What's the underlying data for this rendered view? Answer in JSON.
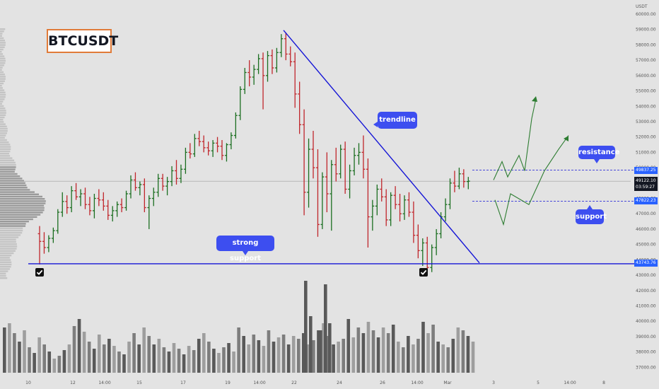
{
  "title": "BTCUSDT",
  "currency_label": "USDT",
  "colors": {
    "background": "#e3e3e3",
    "up_candle": "#1b6e20",
    "down_candle": "#c0262c",
    "trendline": "#1515d6",
    "support_line": "#1515d6",
    "callout": "#3d4ef0",
    "projection": "#2e7d32",
    "title_border": "#e07b39"
  },
  "annotations": {
    "trendline": "trendline",
    "resistance": "resistance",
    "support": "support",
    "strong_support": "strong support"
  },
  "icons": [
    "check-icon",
    "check-icon"
  ],
  "price_tags": {
    "resistance": "49837.25",
    "current_price": "49122.10",
    "countdown": "03:59:27",
    "support": "47822.23",
    "strong_support": "43743.76"
  },
  "chart_data": {
    "type": "candlestick",
    "title": "BTCUSDT",
    "y_axis": {
      "unit": "USDT",
      "range": [
        36400,
        60600
      ],
      "ticks": [
        "60000.00",
        "59000.00",
        "58000.00",
        "57000.00",
        "56000.00",
        "55000.00",
        "54000.00",
        "53000.00",
        "52000.00",
        "51000.00",
        "50000.00",
        "49000.00",
        "48000.00",
        "47000.00",
        "46000.00",
        "45000.00",
        "44000.00",
        "43000.00",
        "42000.00",
        "41000.00",
        "40000.00",
        "39000.00",
        "38000.00",
        "37000.00"
      ],
      "tick_values": [
        60000,
        59000,
        58000,
        57000,
        56000,
        55000,
        54000,
        53000,
        52000,
        51000,
        50000,
        49000,
        48000,
        47000,
        46000,
        45000,
        44000,
        43000,
        42000,
        41000,
        40000,
        39000,
        38000,
        37000
      ]
    },
    "x_axis": {
      "ticks": [
        "10",
        "12",
        "14:00",
        "15",
        "17",
        "19",
        "14:00",
        "22",
        "24",
        "26",
        "14:00",
        "Mar",
        "3",
        "5",
        "14:00",
        "8"
      ]
    },
    "levels": {
      "resistance": 49837.25,
      "current": 49122.1,
      "support": 47822.23,
      "strong_support": 43743.76
    },
    "trendline_points": [
      [
        58950,
        0
      ],
      [
        43800,
        1
      ]
    ],
    "projection_paths": [
      [
        49200,
        49900,
        49300,
        50400,
        49900,
        53300,
        54500
      ],
      [
        47900,
        46300,
        48300,
        47600,
        49800,
        51200,
        52100
      ]
    ],
    "volume_profile": "left-side horizontal histogram",
    "candles": [
      [
        45700,
        46200,
        43700,
        45200
      ],
      [
        45200,
        45800,
        44400,
        44800
      ],
      [
        44800,
        45600,
        44500,
        45400
      ],
      [
        45400,
        46100,
        45100,
        45900
      ],
      [
        45900,
        47300,
        45700,
        47100
      ],
      [
        47100,
        48400,
        46800,
        47800
      ],
      [
        47800,
        48200,
        47000,
        47400
      ],
      [
        47400,
        48800,
        47100,
        48500
      ],
      [
        48500,
        49000,
        47900,
        48100
      ],
      [
        48100,
        48600,
        47500,
        48300
      ],
      [
        48300,
        48700,
        47300,
        47600
      ],
      [
        47600,
        48100,
        46900,
        47200
      ],
      [
        47200,
        48300,
        46700,
        48000
      ],
      [
        48000,
        48600,
        47500,
        47900
      ],
      [
        47900,
        48400,
        47200,
        47500
      ],
      [
        47500,
        47900,
        46600,
        46900
      ],
      [
        46900,
        47500,
        46500,
        47200
      ],
      [
        47200,
        47800,
        46800,
        47600
      ],
      [
        47600,
        48000,
        47100,
        47400
      ],
      [
        47400,
        48500,
        47200,
        48300
      ],
      [
        48300,
        49500,
        48000,
        49200
      ],
      [
        49200,
        49700,
        48500,
        48700
      ],
      [
        48700,
        49100,
        48200,
        48900
      ],
      [
        48900,
        49300,
        47100,
        47400
      ],
      [
        47400,
        48200,
        46000,
        48000
      ],
      [
        48000,
        48700,
        47500,
        48400
      ],
      [
        48400,
        49600,
        48100,
        49300
      ],
      [
        49300,
        49600,
        48500,
        48800
      ],
      [
        48800,
        49400,
        48200,
        49100
      ],
      [
        49100,
        50100,
        48800,
        49800
      ],
      [
        49800,
        50500,
        48900,
        49300
      ],
      [
        49300,
        50200,
        49000,
        49900
      ],
      [
        49900,
        51300,
        49600,
        51000
      ],
      [
        51000,
        51600,
        50600,
        50900
      ],
      [
        50900,
        52200,
        50700,
        51900
      ],
      [
        51900,
        52400,
        51400,
        51700
      ],
      [
        51700,
        52100,
        51000,
        51300
      ],
      [
        51300,
        51700,
        50800,
        51100
      ],
      [
        51100,
        51800,
        50700,
        51600
      ],
      [
        51600,
        52000,
        51000,
        51400
      ],
      [
        51400,
        51800,
        50500,
        50800
      ],
      [
        50800,
        51600,
        50400,
        51500
      ],
      [
        51500,
        52300,
        51200,
        52100
      ],
      [
        52100,
        53600,
        51900,
        53400
      ],
      [
        53400,
        55300,
        53100,
        55100
      ],
      [
        55100,
        56500,
        54800,
        56200
      ],
      [
        56200,
        57000,
        55300,
        55900
      ],
      [
        55900,
        56700,
        55400,
        56400
      ],
      [
        56400,
        57400,
        56100,
        57100
      ],
      [
        57100,
        57500,
        53800,
        56000
      ],
      [
        56000,
        57600,
        55600,
        57300
      ],
      [
        57300,
        57700,
        56100,
        56500
      ],
      [
        56500,
        57800,
        56200,
        57500
      ],
      [
        57500,
        58700,
        57200,
        58400
      ],
      [
        58400,
        58800,
        57000,
        57400
      ],
      [
        57400,
        57900,
        56600,
        56900
      ],
      [
        56900,
        57500,
        53900,
        54800
      ],
      [
        54800,
        55600,
        52200,
        52800
      ],
      [
        52800,
        53800,
        46900,
        48400
      ],
      [
        48400,
        51900,
        47400,
        51200
      ],
      [
        51200,
        52400,
        49300,
        50000
      ],
      [
        50000,
        51200,
        45500,
        46300
      ],
      [
        46300,
        49700,
        46000,
        49400
      ],
      [
        49400,
        51000,
        47100,
        48300
      ],
      [
        48300,
        50500,
        45900,
        50200
      ],
      [
        50200,
        51300,
        49100,
        49600
      ],
      [
        49600,
        51500,
        49300,
        51200
      ],
      [
        51200,
        51700,
        48300,
        48600
      ],
      [
        48600,
        50200,
        48000,
        49800
      ],
      [
        49800,
        51300,
        49500,
        50800
      ],
      [
        50800,
        51600,
        50200,
        51000
      ],
      [
        51000,
        52100,
        49300,
        49900
      ],
      [
        49900,
        50600,
        44800,
        46800
      ],
      [
        46800,
        47900,
        45900,
        47500
      ],
      [
        47500,
        48900,
        46900,
        48600
      ],
      [
        48600,
        49300,
        47800,
        48100
      ],
      [
        48100,
        48600,
        46200,
        46600
      ],
      [
        46600,
        48400,
        46200,
        48200
      ],
      [
        48200,
        48800,
        47300,
        47600
      ],
      [
        47600,
        48300,
        46500,
        47000
      ],
      [
        47000,
        48200,
        46600,
        47900
      ],
      [
        47900,
        48400,
        46800,
        47100
      ],
      [
        47100,
        47800,
        45100,
        45600
      ],
      [
        45600,
        46300,
        44100,
        44600
      ],
      [
        44600,
        45400,
        43600,
        45100
      ],
      [
        45100,
        45500,
        43100,
        43500
      ],
      [
        43500,
        45000,
        43200,
        44800
      ],
      [
        44800,
        46000,
        44300,
        45700
      ],
      [
        45700,
        47100,
        45400,
        46800
      ],
      [
        46800,
        48000,
        46500,
        47600
      ],
      [
        47600,
        49300,
        47300,
        49000
      ],
      [
        49000,
        49800,
        48400,
        48800
      ],
      [
        48800,
        50000,
        48600,
        49600
      ],
      [
        49600,
        49900,
        48700,
        49100
      ],
      [
        49100,
        49400,
        48600,
        49122
      ]
    ],
    "volumes": [
      0.32,
      0.35,
      0.28,
      0.22,
      0.3,
      0.18,
      0.14,
      0.25,
      0.2,
      0.15,
      0.1,
      0.12,
      0.16,
      0.2,
      0.33,
      0.38,
      0.29,
      0.22,
      0.17,
      0.27,
      0.2,
      0.24,
      0.19,
      0.15,
      0.13,
      0.22,
      0.28,
      0.2,
      0.32,
      0.26,
      0.2,
      0.24,
      0.18,
      0.15,
      0.21,
      0.17,
      0.13,
      0.19,
      0.16,
      0.24,
      0.28,
      0.22,
      0.17,
      0.14,
      0.18,
      0.21,
      0.15,
      0.32,
      0.26,
      0.2,
      0.27,
      0.23,
      0.19,
      0.3,
      0.22,
      0.25,
      0.27,
      0.2,
      0.26,
      0.24,
      0.28,
      0.2,
      0.23,
      0.3,
      0.35,
      0.26,
      0.2,
      0.22,
      0.24,
      0.38,
      0.25,
      0.32,
      0.28,
      0.36,
      0.3,
      0.25,
      0.32,
      0.28,
      0.34,
      0.22,
      0.18,
      0.26,
      0.2,
      0.24,
      0.36,
      0.28,
      0.34,
      0.22,
      0.2,
      0.18,
      0.24,
      0.32,
      0.3,
      0.26,
      0.22
    ]
  }
}
